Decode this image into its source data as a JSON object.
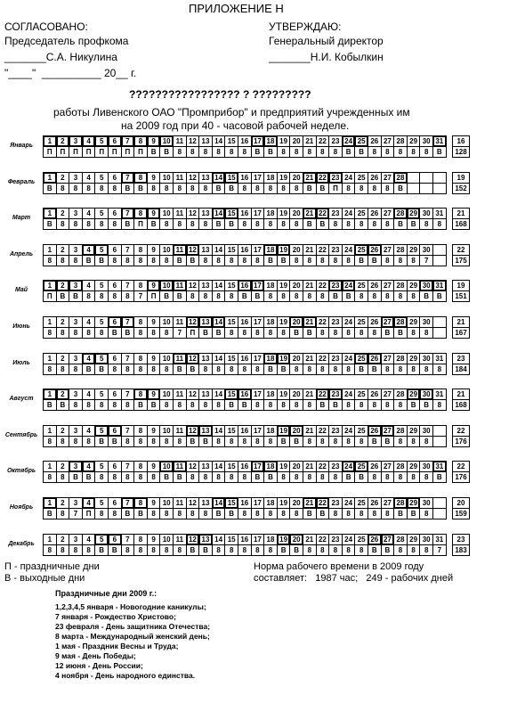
{
  "header": {
    "title": "ПРИЛОЖЕНИЕ Н",
    "left": [
      "СОГЛАСОВАНО:",
      "Председатель профкома",
      "_______С.А. Никулина",
      "\"____\"  __________ 20__ г."
    ],
    "right": [
      "УТВЕРЖДАЮ:",
      "Генеральный директор",
      "_______Н.И. Кобылкин"
    ]
  },
  "heading": "????????????????? ? ?????????",
  "subtitle": [
    "работы Ливенского ОАО \"Промприбор\" и предприятий учрежденных им",
    "на 2009 год при 40 - часовой рабочей неделе."
  ],
  "months": [
    {
      "name": "Январь",
      "days": [
        1,
        2,
        3,
        4,
        5,
        6,
        7,
        8,
        9,
        10,
        11,
        12,
        13,
        14,
        15,
        16,
        17,
        18,
        19,
        20,
        21,
        22,
        23,
        24,
        25,
        26,
        27,
        28,
        29,
        30,
        31
      ],
      "codes": [
        "П",
        "П",
        "П",
        "П",
        "П",
        "П",
        "П",
        "П",
        "В",
        "В",
        "8",
        "8",
        "8",
        "8",
        "8",
        "8",
        "В",
        "В",
        "8",
        "8",
        "8",
        "8",
        "8",
        "В",
        "В",
        "8",
        "8",
        "8",
        "8",
        "8",
        "В"
      ],
      "total_days": 16,
      "total_hours": 128
    },
    {
      "name": "Февраль",
      "days": [
        1,
        2,
        3,
        4,
        5,
        6,
        7,
        8,
        9,
        10,
        11,
        12,
        13,
        14,
        15,
        16,
        17,
        18,
        19,
        20,
        21,
        22,
        23,
        24,
        25,
        26,
        27,
        28
      ],
      "codes": [
        "В",
        "8",
        "8",
        "8",
        "8",
        "8",
        "В",
        "В",
        "8",
        "8",
        "8",
        "8",
        "8",
        "В",
        "В",
        "8",
        "8",
        "8",
        "8",
        "8",
        "В",
        "В",
        "П",
        "8",
        "8",
        "8",
        "8",
        "В"
      ],
      "total_days": 19,
      "total_hours": 152
    },
    {
      "name": "Март",
      "days": [
        1,
        2,
        3,
        4,
        5,
        6,
        7,
        8,
        9,
        10,
        11,
        12,
        13,
        14,
        15,
        16,
        17,
        18,
        19,
        20,
        21,
        22,
        23,
        24,
        25,
        26,
        27,
        28,
        29,
        30,
        31
      ],
      "codes": [
        "В",
        "8",
        "8",
        "8",
        "8",
        "8",
        "В",
        "П",
        "В",
        "8",
        "8",
        "8",
        "8",
        "В",
        "В",
        "8",
        "8",
        "8",
        "8",
        "8",
        "В",
        "В",
        "8",
        "8",
        "8",
        "8",
        "8",
        "В",
        "В",
        "8",
        "8"
      ],
      "total_days": 21,
      "total_hours": 168
    },
    {
      "name": "Апрель",
      "days": [
        1,
        2,
        3,
        4,
        5,
        6,
        7,
        8,
        9,
        10,
        11,
        12,
        13,
        14,
        15,
        16,
        17,
        18,
        19,
        20,
        21,
        22,
        23,
        24,
        25,
        26,
        27,
        28,
        29,
        30
      ],
      "codes": [
        "8",
        "8",
        "8",
        "В",
        "В",
        "8",
        "8",
        "8",
        "8",
        "8",
        "В",
        "В",
        "8",
        "8",
        "8",
        "8",
        "8",
        "В",
        "В",
        "8",
        "8",
        "8",
        "8",
        "8",
        "В",
        "В",
        "8",
        "8",
        "8",
        "7"
      ],
      "total_days": 22,
      "total_hours": 175
    },
    {
      "name": "Май",
      "days": [
        1,
        2,
        3,
        4,
        5,
        6,
        7,
        8,
        9,
        10,
        11,
        12,
        13,
        14,
        15,
        16,
        17,
        18,
        19,
        20,
        21,
        22,
        23,
        24,
        25,
        26,
        27,
        28,
        29,
        30,
        31
      ],
      "codes": [
        "П",
        "В",
        "В",
        "8",
        "8",
        "8",
        "8",
        "7",
        "П",
        "В",
        "В",
        "8",
        "8",
        "8",
        "8",
        "В",
        "В",
        "8",
        "8",
        "8",
        "8",
        "8",
        "В",
        "В",
        "8",
        "8",
        "8",
        "8",
        "8",
        "В",
        "В"
      ],
      "total_days": 19,
      "total_hours": 151
    },
    {
      "name": "Июнь",
      "days": [
        1,
        2,
        3,
        4,
        5,
        6,
        7,
        8,
        9,
        10,
        11,
        12,
        13,
        14,
        15,
        16,
        17,
        18,
        19,
        20,
        21,
        22,
        23,
        24,
        25,
        26,
        27,
        28,
        29,
        30
      ],
      "codes": [
        "8",
        "8",
        "8",
        "8",
        "8",
        "В",
        "В",
        "8",
        "8",
        "8",
        "7",
        "П",
        "В",
        "В",
        "8",
        "8",
        "8",
        "8",
        "8",
        "В",
        "В",
        "8",
        "8",
        "8",
        "8",
        "8",
        "В",
        "В",
        "8",
        "8"
      ],
      "total_days": 21,
      "total_hours": 167
    },
    {
      "name": "Июль",
      "days": [
        1,
        2,
        3,
        4,
        5,
        6,
        7,
        8,
        9,
        10,
        11,
        12,
        13,
        14,
        15,
        16,
        17,
        18,
        19,
        20,
        21,
        22,
        23,
        24,
        25,
        26,
        27,
        28,
        29,
        30,
        31
      ],
      "codes": [
        "8",
        "8",
        "8",
        "В",
        "В",
        "8",
        "8",
        "8",
        "8",
        "8",
        "В",
        "В",
        "8",
        "8",
        "8",
        "8",
        "8",
        "В",
        "В",
        "8",
        "8",
        "8",
        "8",
        "8",
        "В",
        "В",
        "8",
        "8",
        "8",
        "8",
        "8"
      ],
      "total_days": 23,
      "total_hours": 184
    },
    {
      "name": "Август",
      "days": [
        1,
        2,
        3,
        4,
        5,
        6,
        7,
        8,
        9,
        10,
        11,
        12,
        13,
        14,
        15,
        16,
        17,
        18,
        19,
        20,
        21,
        22,
        23,
        24,
        25,
        26,
        27,
        28,
        29,
        30,
        31
      ],
      "codes": [
        "В",
        "В",
        "8",
        "8",
        "8",
        "8",
        "8",
        "В",
        "В",
        "8",
        "8",
        "8",
        "8",
        "8",
        "В",
        "В",
        "8",
        "8",
        "8",
        "8",
        "8",
        "В",
        "В",
        "8",
        "8",
        "8",
        "8",
        "8",
        "В",
        "В",
        "8"
      ],
      "total_days": 21,
      "total_hours": 168
    },
    {
      "name": "Сентябрь",
      "days": [
        1,
        2,
        3,
        4,
        5,
        6,
        7,
        8,
        9,
        10,
        11,
        12,
        13,
        14,
        15,
        16,
        17,
        18,
        19,
        20,
        21,
        22,
        23,
        24,
        25,
        26,
        27,
        28,
        29,
        30
      ],
      "codes": [
        "8",
        "8",
        "8",
        "8",
        "В",
        "В",
        "8",
        "8",
        "8",
        "8",
        "8",
        "В",
        "В",
        "8",
        "8",
        "8",
        "8",
        "8",
        "В",
        "В",
        "8",
        "8",
        "8",
        "8",
        "8",
        "В",
        "В",
        "8",
        "8",
        "8"
      ],
      "total_days": 22,
      "total_hours": 176
    },
    {
      "name": "Октябрь",
      "days": [
        1,
        2,
        3,
        4,
        5,
        6,
        7,
        8,
        9,
        10,
        11,
        12,
        13,
        14,
        15,
        16,
        17,
        18,
        19,
        20,
        21,
        22,
        23,
        24,
        25,
        26,
        27,
        28,
        29,
        30,
        31
      ],
      "codes": [
        "8",
        "8",
        "В",
        "В",
        "8",
        "8",
        "8",
        "8",
        "8",
        "В",
        "В",
        "8",
        "8",
        "8",
        "8",
        "8",
        "В",
        "В",
        "8",
        "8",
        "8",
        "8",
        "8",
        "В",
        "В",
        "8",
        "8",
        "8",
        "8",
        "8",
        "В"
      ],
      "total_days": 22,
      "total_hours": 176
    },
    {
      "name": "Ноябрь",
      "days": [
        1,
        2,
        3,
        4,
        5,
        6,
        7,
        8,
        9,
        10,
        11,
        12,
        13,
        14,
        15,
        16,
        17,
        18,
        19,
        20,
        21,
        22,
        23,
        24,
        25,
        26,
        27,
        28,
        29,
        30
      ],
      "codes": [
        "В",
        "8",
        "7",
        "П",
        "8",
        "8",
        "В",
        "В",
        "8",
        "8",
        "8",
        "8",
        "8",
        "В",
        "В",
        "8",
        "8",
        "8",
        "8",
        "8",
        "В",
        "В",
        "8",
        "8",
        "8",
        "8",
        "8",
        "В",
        "В",
        "8"
      ],
      "total_days": 20,
      "total_hours": 159
    },
    {
      "name": "Декабрь",
      "days": [
        1,
        2,
        3,
        4,
        5,
        6,
        7,
        8,
        9,
        10,
        11,
        12,
        13,
        14,
        15,
        16,
        17,
        18,
        19,
        20,
        21,
        22,
        23,
        24,
        25,
        26,
        27,
        28,
        29,
        30,
        31
      ],
      "codes": [
        "8",
        "8",
        "8",
        "8",
        "В",
        "В",
        "8",
        "8",
        "8",
        "8",
        "8",
        "В",
        "В",
        "8",
        "8",
        "8",
        "8",
        "8",
        "В",
        "В",
        "8",
        "8",
        "8",
        "8",
        "8",
        "В",
        "В",
        "8",
        "8",
        "8",
        "7"
      ],
      "total_days": 23,
      "total_hours": 183
    }
  ],
  "legend": [
    "П - праздничные дни",
    "В - выходные дни"
  ],
  "norm": [
    "Норма рабочего времени в 2009 году",
    "составляет:   1987 час;   249 - рабочих дней"
  ],
  "holidays": {
    "title": "Праздничные дни 2009 г.:",
    "items": [
      "1,2,3,4,5 января - Новогодние каникулы;",
      "7 января - Рождество Христово;",
      "23 февраля - День защитника Отечества;",
      "8 марта - Международный женский день;",
      "1 мая - Праздник Весны и Труда;",
      "9 мая - День Победы;",
      "12 июня - День России;",
      "4 ноября - День народного единства."
    ]
  }
}
